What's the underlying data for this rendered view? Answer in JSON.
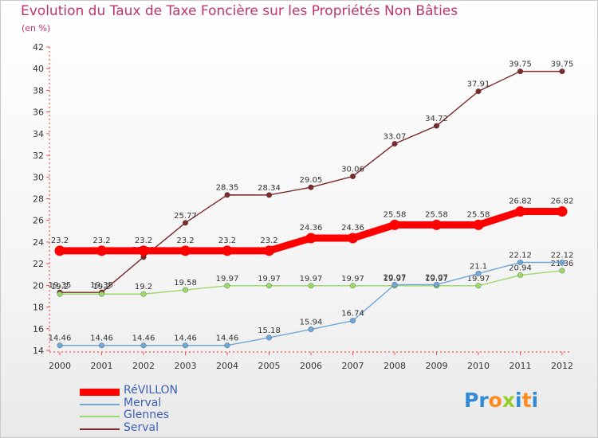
{
  "title": "Evolution du Taux de Taxe Foncière sur les Propriétés Non Bâties",
  "unit": "(en %)",
  "logo": {
    "letters": [
      "P",
      "r",
      "o",
      "x",
      "i",
      "t",
      "i"
    ],
    "colors": [
      "#2f8ad8",
      "#2f8ad8",
      "#ff8a1c",
      "#9acc2a",
      "#2f8ad8",
      "#ff8a1c",
      "#2f8ad8"
    ]
  },
  "chart_data": {
    "type": "line",
    "title": "Evolution du Taux de Taxe Foncière sur les Propriétés Non Bâties",
    "ylabel": "(en %)",
    "x": [
      "2000",
      "2001",
      "2002",
      "2003",
      "2004",
      "2005",
      "2006",
      "2007",
      "2008",
      "2009",
      "2010",
      "2011",
      "2012"
    ],
    "ylim": [
      14,
      42
    ],
    "yticks": [
      "14",
      "16",
      "18",
      "20",
      "22",
      "24",
      "26",
      "28",
      "30",
      "32",
      "34",
      "36",
      "38",
      "40",
      "42"
    ],
    "grid": false,
    "legend": "bottom-left",
    "series": [
      {
        "name": "RéVILLON",
        "color": "#ff0000",
        "values": [
          23.2,
          23.2,
          23.2,
          23.2,
          23.2,
          23.2,
          24.36,
          24.36,
          25.58,
          25.58,
          25.58,
          26.82,
          26.82
        ],
        "labels": [
          "23.2",
          "23.2",
          "23.2",
          "23.2",
          "23.2",
          "23.2",
          "24.36",
          "24.36",
          "25.58",
          "25.58",
          "25.58",
          "26.82",
          "26.82"
        ]
      },
      {
        "name": "Merval",
        "color": "#6fa8d8",
        "values": [
          14.46,
          14.46,
          14.46,
          14.46,
          14.46,
          15.18,
          15.94,
          16.74,
          20.07,
          20.07,
          21.1,
          22.12,
          22.12
        ],
        "labels": [
          "14.46",
          "14.46",
          "14.46",
          "14.46",
          "14.46",
          "15.18",
          "15.94",
          "16.74",
          "20.07",
          "20.07",
          "21.1",
          "22.12",
          "22.12"
        ]
      },
      {
        "name": "Glennes",
        "color": "#9ad86a",
        "values": [
          19.2,
          19.2,
          19.2,
          19.58,
          19.97,
          19.97,
          19.97,
          19.97,
          19.97,
          19.97,
          19.97,
          20.94,
          21.36
        ],
        "labels": [
          "19.2",
          "19.2",
          "19.2",
          "19.58",
          "19.97",
          "19.97",
          "19.97",
          "19.97",
          "19.97",
          "19.97",
          "19.97",
          "20.94",
          "21.36"
        ]
      },
      {
        "name": "Serval",
        "color": "#7b2b2b",
        "values": [
          19.35,
          19.35,
          22.61,
          25.77,
          28.35,
          28.34,
          29.05,
          30.06,
          33.07,
          34.72,
          37.91,
          39.75,
          39.75
        ],
        "labels": [
          "19.35",
          "19.35",
          "22.61",
          "25.77",
          "28.35",
          "28.34",
          "29.05",
          "30.06",
          "33.07",
          "34.72",
          "37.91",
          "39.75",
          "39.75"
        ]
      }
    ]
  }
}
